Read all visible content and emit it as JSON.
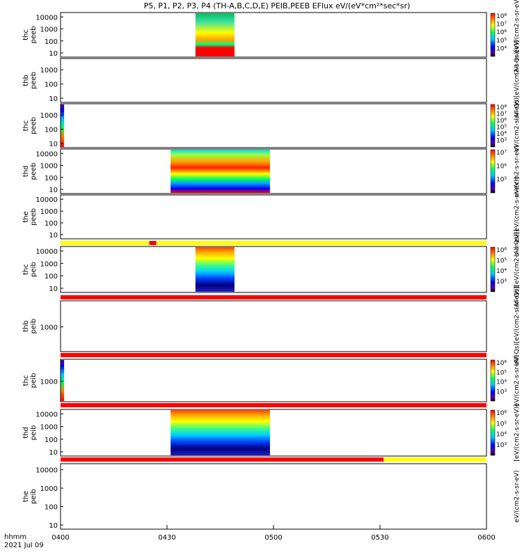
{
  "title": "P5, P1, P2, P3, P4 (TH-A,B,C,D,E) PEIB,PEEB EFlux eV/(eV*cm²*sec*sr)",
  "footer": {
    "fmt": "hhmm",
    "date": "2021 Jul 09"
  },
  "colors": {
    "red": "#ff0000",
    "yellow": "#ffff00",
    "frame": "#000000"
  },
  "chart_data": {
    "type": "heatmap",
    "x_ticks": [
      "0400",
      "0430",
      "0500",
      "0530",
      "0600"
    ],
    "x_range": [
      "04:00",
      "06:00"
    ],
    "panels": [
      {
        "id": "thc-peeb",
        "ylabel": [
          "thc",
          "peeb"
        ],
        "yticks": [
          "10000",
          "1000",
          "100",
          "10"
        ],
        "time_range": [
          "04:38",
          "04:49"
        ],
        "has_colorbar": true,
        "colorbar_ticks": [
          "10⁸",
          "10⁷",
          "10⁶",
          "10⁵",
          "10⁴"
        ],
        "colorbar_label": "(All Qs)[eV/(cm2-s-sr-eV)]"
      },
      {
        "id": "thb-peeb",
        "ylabel": [
          "thb",
          "peeb"
        ],
        "yticks": [
          "1000",
          "100",
          "10"
        ],
        "time_range": null,
        "has_colorbar": false,
        "colorbar_label": "(All Qs)[eV/(cm2-s-sr-eV)]"
      },
      {
        "id": "thc-peeb-2",
        "ylabel": [
          "thc",
          "peeb"
        ],
        "yticks": [
          "1000",
          "100",
          "10"
        ],
        "time_range": [
          "04:00",
          "04:01"
        ],
        "has_colorbar": true,
        "colorbar_ticks": [
          "10⁸",
          "10⁷",
          "10⁶",
          "10⁵",
          "10⁴",
          "10³"
        ],
        "colorbar_label": "eV/(cm2-s-sr-eV)"
      },
      {
        "id": "thd-peeb",
        "ylabel": [
          "thd",
          "peeb"
        ],
        "yticks": [
          "10000",
          "1000",
          "100",
          "10"
        ],
        "time_range": [
          "04:31",
          "04:59"
        ],
        "has_colorbar": true,
        "colorbar_ticks": [
          "10⁷",
          "10⁶",
          "10⁵"
        ],
        "colorbar_label": "eV/(cm2-s-sr-eV)"
      },
      {
        "id": "the-peeb",
        "ylabel": [
          "the",
          "peeb"
        ],
        "yticks": [
          "10000",
          "1000",
          "100",
          "10"
        ],
        "time_range": null,
        "has_colorbar": false,
        "colorbar_label": "(All Qs)[eV/(cm2-s-sr-eV)]"
      },
      {
        "id": "thc-peib",
        "ylabel": [
          "thc",
          "peib"
        ],
        "yticks": [
          "10000",
          "1000",
          "100",
          "10"
        ],
        "time_range": [
          "04:38",
          "04:49"
        ],
        "has_colorbar": true,
        "colorbar_ticks": [
          "10⁶",
          "10⁵",
          "10⁴",
          "10³"
        ],
        "colorbar_label": "(All Qs)[eV/(cm2-s-sr-eV)]"
      },
      {
        "id": "thb-peib",
        "ylabel": [
          "thb",
          "peib"
        ],
        "yticks": [
          "1000"
        ],
        "time_range": null,
        "has_colorbar": false,
        "colorbar_label": "(All Qs)[eV/(cm2-s-sr-eV)]"
      },
      {
        "id": "thc-peib-2",
        "ylabel": [
          "thc",
          "peib"
        ],
        "yticks": [
          "1000"
        ],
        "time_range": [
          "04:00",
          "04:01"
        ],
        "has_colorbar": true,
        "colorbar_ticks": [
          "10⁶",
          "10⁵",
          "10⁴",
          "10³"
        ],
        "colorbar_label": "eV/(cm2-s-sr-eV)"
      },
      {
        "id": "thd-peib",
        "ylabel": [
          "thd",
          "peib"
        ],
        "yticks": [
          "10000",
          "1000",
          "100",
          "10"
        ],
        "time_range": [
          "04:31",
          "04:59"
        ],
        "has_colorbar": true,
        "colorbar_ticks": [
          "10⁶",
          "10⁵",
          "10⁴",
          "10³"
        ],
        "colorbar_label": "[eV/(cm2-s-sr-eV)]"
      },
      {
        "id": "the-peib",
        "ylabel": [
          "the",
          "peib"
        ],
        "yticks": [
          "10000",
          "1000",
          "100",
          "10"
        ],
        "time_range": null,
        "has_colorbar": false,
        "colorbar_label": "eV/(cm2-s-sr-eV)"
      }
    ],
    "status_bars": [
      {
        "after_panel": "the-peeb",
        "segments": [
          {
            "from": "04:00",
            "to": "04:25",
            "color": "yellow"
          },
          {
            "from": "04:25",
            "to": "04:27",
            "color": "red"
          },
          {
            "from": "04:27",
            "to": "06:00",
            "color": "yellow"
          }
        ]
      },
      {
        "after_panel": "thc-peib",
        "segments": [
          {
            "from": "04:00",
            "to": "06:00",
            "color": "red"
          }
        ]
      },
      {
        "after_panel": "thb-peib",
        "segments": [
          {
            "from": "04:00",
            "to": "06:00",
            "color": "red"
          }
        ]
      },
      {
        "after_panel": "thc-peib-2",
        "segments": [
          {
            "from": "04:00",
            "to": "06:00",
            "color": "red"
          }
        ]
      },
      {
        "after_panel": "thd-peib",
        "segments": [
          {
            "from": "04:00",
            "to": "05:31",
            "color": "red"
          },
          {
            "from": "05:31",
            "to": "06:00",
            "color": "yellow"
          }
        ]
      }
    ]
  }
}
